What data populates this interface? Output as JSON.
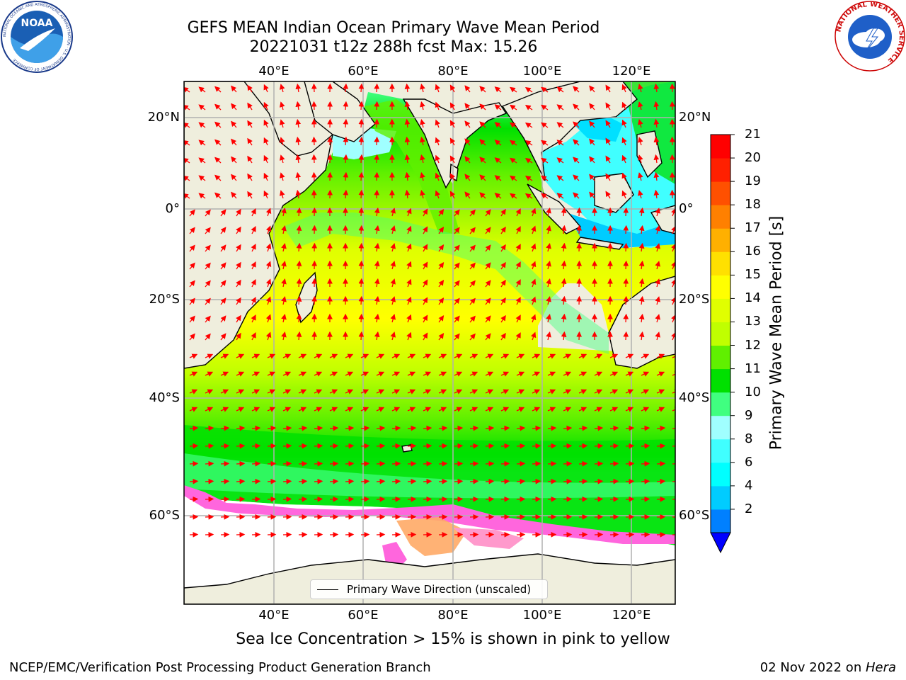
{
  "title": {
    "line1": "GEFS MEAN Indian Ocean Primary Wave Mean Period",
    "line2": "20221031 t12z 288h fcst   Max: 15.26"
  },
  "map": {
    "lon_ticks_top": [
      "40°E",
      "60°E",
      "80°E",
      "100°E",
      "120°E"
    ],
    "lon_ticks_bottom": [
      "40°E",
      "60°E",
      "80°E",
      "100°E",
      "120°E"
    ],
    "lat_ticks_left": [
      "20°N",
      "0°",
      "20°S",
      "40°S",
      "60°S"
    ],
    "lat_ticks_right": [
      "20°N",
      "0°",
      "20°S",
      "40°S",
      "60°S"
    ],
    "lon_range": [
      20,
      130
    ],
    "lat_range": [
      -75,
      27
    ],
    "land_color": "#efeedd",
    "arrow_color": "#ff0000",
    "legend_label": "Primary Wave Direction (unscaled)"
  },
  "colorbar": {
    "title": "Primary Wave Mean Period [s]",
    "labels": [
      "21",
      "20",
      "19",
      "18",
      "17",
      "16",
      "15",
      "14",
      "13",
      "12",
      "11",
      "10",
      "9",
      "8",
      "6",
      "4",
      "2"
    ],
    "levels": [
      2,
      4,
      6,
      8,
      9,
      10,
      11,
      12,
      13,
      14,
      15,
      16,
      17,
      18,
      19,
      20,
      21
    ],
    "colors": [
      "#0080ff",
      "#00ccff",
      "#00ffff",
      "#40ffff",
      "#a0ffff",
      "#40ff80",
      "#00e000",
      "#60f000",
      "#c0ff00",
      "#e0ff00",
      "#ffff00",
      "#ffe000",
      "#ffb000",
      "#ff8000",
      "#ff5000",
      "#ff2000",
      "#ff0000"
    ],
    "extend_color": "#0000ff"
  },
  "caption": "Sea Ice Concentration > 15% is shown in pink to yellow",
  "footer": {
    "left": "NCEP/EMC/Verification Post Processing Product Generation Branch",
    "date": "02 Nov 2022 on ",
    "machine": "Hera"
  },
  "logos": {
    "noaa_text": "NOAA",
    "noaa_ring_text": "NATIONAL OCEANIC AND ATMOSPHERIC ADMINISTRATION · U.S. DEPARTMENT OF COMMERCE",
    "nws_ring_text": "NATIONAL WEATHER SERVICE"
  }
}
